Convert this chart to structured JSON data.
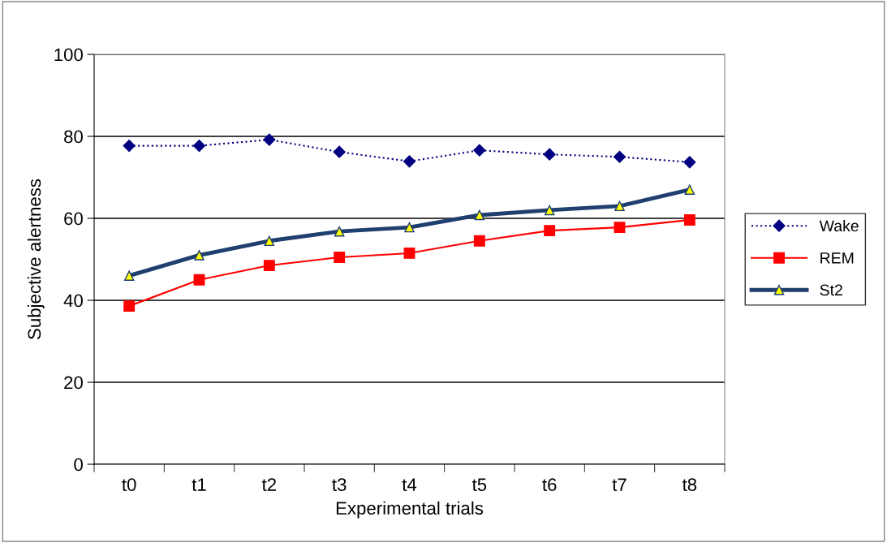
{
  "chart_data": {
    "type": "line",
    "xlabel": "Experimental trials",
    "ylabel": "Subjective alertness",
    "categories": [
      "t0",
      "t1",
      "t2",
      "t3",
      "t4",
      "t5",
      "t6",
      "t7",
      "t8"
    ],
    "series": [
      {
        "name": "Wake",
        "color": "#000080",
        "marker": "diamond",
        "line_style": "dotted",
        "values": [
          77.7,
          77.7,
          79.2,
          76.2,
          73.9,
          76.6,
          75.6,
          75,
          73.7
        ]
      },
      {
        "name": "REM",
        "color": "#ff0000",
        "marker": "square",
        "line_style": "solid",
        "values": [
          38.6,
          45,
          48.5,
          50.5,
          51.5,
          54.5,
          57,
          57.8,
          59.6
        ]
      },
      {
        "name": "St2",
        "color": "#1f3f6f",
        "marker": "triangle",
        "line_style": "solid",
        "values": [
          46,
          51,
          54.5,
          56.8,
          57.8,
          60.8,
          62,
          63,
          67
        ]
      }
    ],
    "ylim": [
      0,
      100
    ],
    "yticks": [
      0,
      20,
      40,
      60,
      80,
      100
    ],
    "grid": "y",
    "legend": "right"
  }
}
